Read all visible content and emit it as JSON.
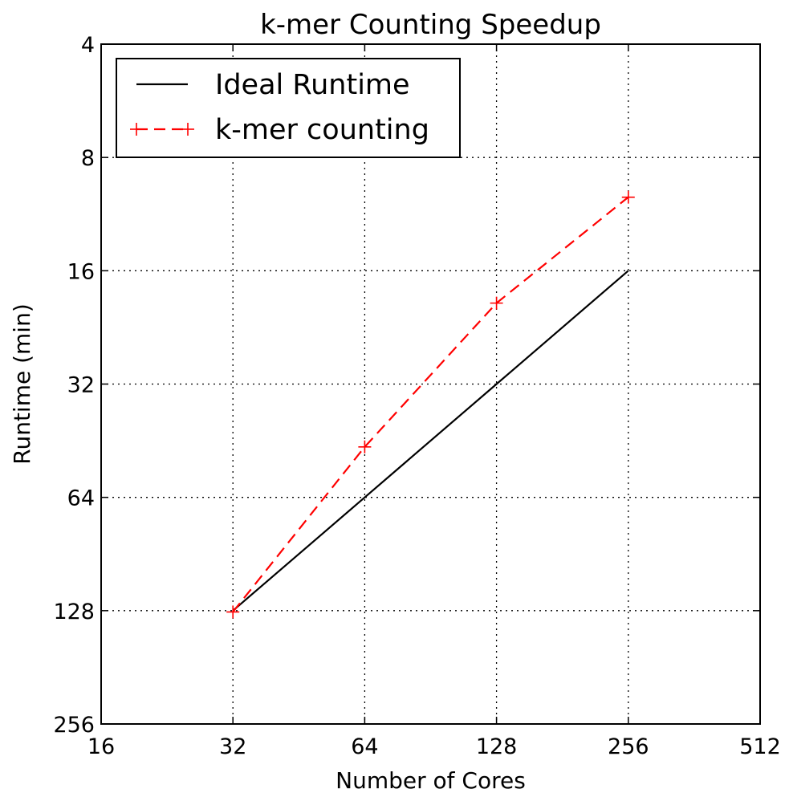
{
  "chart_data": {
    "type": "line",
    "title": "k-mer Counting Speedup",
    "xlabel": "Number of Cores",
    "ylabel": "Runtime (min)",
    "x_scale": "log2",
    "y_scale": "log2",
    "y_inverted": true,
    "xlim": [
      16,
      512
    ],
    "ylim": [
      256,
      4
    ],
    "xticks": [
      16,
      32,
      64,
      128,
      256,
      512
    ],
    "yticks": [
      4,
      8,
      16,
      32,
      64,
      128,
      256
    ],
    "xtick_labels": [
      "16",
      "32",
      "64",
      "128",
      "256",
      "512"
    ],
    "ytick_labels": [
      "4",
      "8",
      "16",
      "32",
      "64",
      "128",
      "256"
    ],
    "grid": true,
    "legend_position": "top-left",
    "series": [
      {
        "name": "Ideal Runtime",
        "style": "solid",
        "color": "#000000",
        "marker": "none",
        "x": [
          32,
          64,
          128,
          256
        ],
        "y": [
          128,
          64,
          32,
          16
        ]
      },
      {
        "name": "k-mer counting",
        "style": "dashed",
        "color": "#ff0000",
        "marker": "+",
        "x": [
          32,
          64,
          128,
          256
        ],
        "y": [
          129,
          47,
          19.5,
          10.2
        ]
      }
    ]
  }
}
